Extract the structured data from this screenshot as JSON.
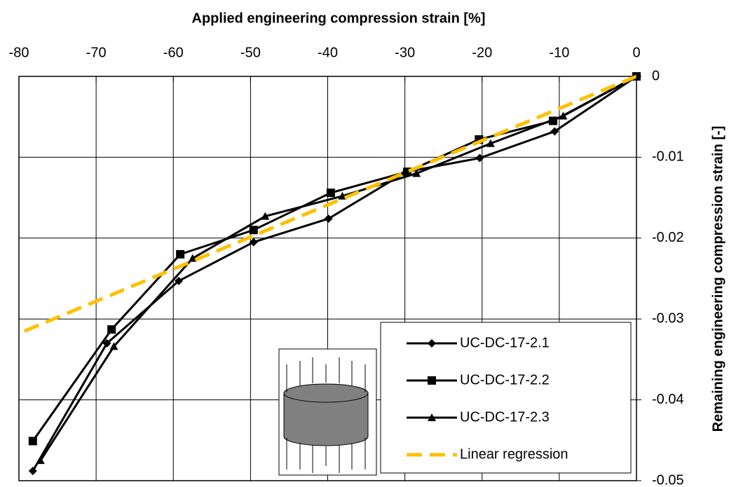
{
  "chart_data": {
    "type": "line",
    "title": "Applied engineering compression strain [%]",
    "y_label": "Remaining engineering compression strain [-]",
    "xlim": [
      -80,
      0
    ],
    "xticks": [
      -80,
      -70,
      -60,
      -50,
      -40,
      -30,
      -20,
      -10,
      0
    ],
    "ylim": [
      -0.05,
      0
    ],
    "yticks": [
      0,
      -0.01,
      -0.02,
      -0.03,
      -0.04,
      -0.05
    ],
    "grid": true,
    "legend": "lower right",
    "series": [
      {
        "name": "UC-DC-17-2.1",
        "color": "#000000",
        "marker": "diamond",
        "dashed": false,
        "x": [
          -78.2,
          -68.6,
          -59.3,
          -49.6,
          -39.9,
          -29.8,
          -20.3,
          -10.6,
          0
        ],
        "values": [
          -0.0488,
          -0.033,
          -0.0253,
          -0.0205,
          -0.0176,
          -0.0118,
          -0.0101,
          -0.0068,
          0
        ]
      },
      {
        "name": "UC-DC-17-2.2",
        "color": "#000000",
        "marker": "square",
        "dashed": false,
        "x": [
          -78.2,
          -68,
          -59.1,
          -49.6,
          -39.6,
          -29.7,
          -20.4,
          -10.8,
          0
        ],
        "values": [
          -0.0451,
          -0.0313,
          -0.022,
          -0.019,
          -0.0144,
          -0.0118,
          -0.0078,
          -0.0055,
          0
        ]
      },
      {
        "name": "UC-DC-17-2.3",
        "color": "#000000",
        "marker": "triangle",
        "dashed": false,
        "x": [
          -77.2,
          -67.7,
          -57.5,
          -48.1,
          -38.1,
          -28.5,
          -18.9,
          -9.5,
          0
        ],
        "values": [
          -0.0475,
          -0.0334,
          -0.0225,
          -0.0173,
          -0.0148,
          -0.012,
          -0.0083,
          -0.0049,
          0
        ]
      },
      {
        "name": "Linear regression",
        "color": "#ffc000",
        "marker": "none",
        "dashed": true,
        "x": [
          -79.3,
          0
        ],
        "values": [
          -0.0315,
          0
        ]
      }
    ]
  }
}
